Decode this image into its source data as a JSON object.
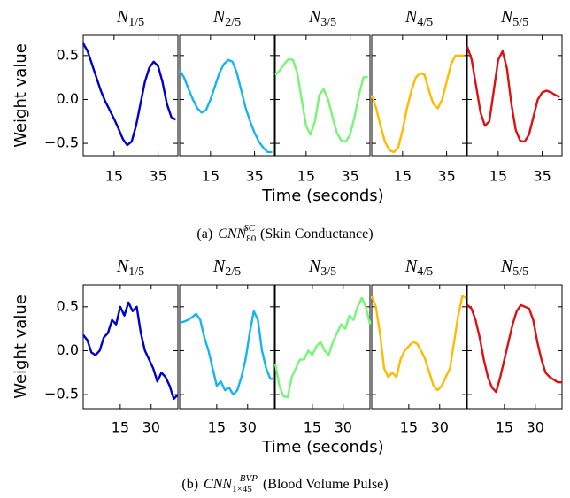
{
  "chart_data": [
    {
      "type": "line",
      "ylabel": "Weight value",
      "xlabel": "Time (seconds)",
      "caption_label": "(a)",
      "caption_math": "CNN",
      "caption_subscript": "80",
      "caption_superscript": "SC",
      "caption_text": "(Skin Conductance)",
      "xlim": [
        1,
        44
      ],
      "ylim": [
        -0.64,
        0.73
      ],
      "xticks": [
        15,
        35
      ],
      "yticks": [
        {
          "value": -0.5,
          "label": "−0.5"
        },
        {
          "value": 0,
          "label": "0.0"
        },
        0.5
      ],
      "x": [
        1,
        3,
        5,
        7,
        9,
        11,
        13,
        15,
        17,
        19,
        21,
        23,
        25,
        27,
        29,
        31,
        33,
        35,
        37,
        39,
        41,
        43
      ],
      "panels": [
        {
          "title": "N",
          "title_subscript": "1/5",
          "color": "#0000cc",
          "values": [
            0.64,
            0.55,
            0.4,
            0.25,
            0.1,
            -0.02,
            -0.12,
            -0.22,
            -0.33,
            -0.45,
            -0.52,
            -0.48,
            -0.3,
            -0.05,
            0.2,
            0.36,
            0.43,
            0.38,
            0.2,
            -0.05,
            -0.2,
            -0.23
          ]
        },
        {
          "title": "N",
          "title_subscript": "2/5",
          "color": "#19b3f0",
          "values": [
            0.33,
            0.25,
            0.12,
            0.0,
            -0.1,
            -0.15,
            -0.12,
            0.0,
            0.15,
            0.3,
            0.4,
            0.45,
            0.43,
            0.3,
            0.1,
            -0.1,
            -0.25,
            -0.38,
            -0.48,
            -0.55,
            -0.6,
            -0.6
          ]
        },
        {
          "title": "N",
          "title_subscript": "3/5",
          "color": "#77f577",
          "values": [
            0.28,
            0.33,
            0.4,
            0.46,
            0.45,
            0.3,
            0.0,
            -0.3,
            -0.4,
            -0.25,
            0.05,
            0.12,
            0.0,
            -0.2,
            -0.38,
            -0.47,
            -0.48,
            -0.4,
            -0.2,
            0.05,
            0.25,
            0.26
          ]
        },
        {
          "title": "N",
          "title_subscript": "4/5",
          "color": "#ffbb00",
          "values": [
            0.05,
            -0.1,
            -0.3,
            -0.48,
            -0.58,
            -0.6,
            -0.55,
            -0.35,
            -0.1,
            0.1,
            0.25,
            0.3,
            0.28,
            0.1,
            -0.05,
            -0.1,
            0.0,
            0.2,
            0.4,
            0.5,
            0.5,
            0.5
          ]
        },
        {
          "title": "N",
          "title_subscript": "5/5",
          "color": "#dd1111",
          "values": [
            0.6,
            0.45,
            0.15,
            -0.15,
            -0.3,
            -0.25,
            0.1,
            0.45,
            0.55,
            0.35,
            -0.05,
            -0.35,
            -0.47,
            -0.48,
            -0.4,
            -0.2,
            0.0,
            0.08,
            0.1,
            0.08,
            0.05,
            0.03
          ]
        }
      ]
    },
    {
      "type": "line",
      "ylabel": "Weight value",
      "xlabel": "Time (seconds)",
      "caption_label": "(b)",
      "caption_math": "CNN",
      "caption_subscript": "1×45",
      "caption_superscript": "BVP",
      "caption_text": "(Blood Volume Pulse)",
      "xlim": [
        -3,
        43
      ],
      "ylim": [
        -0.66,
        0.75
      ],
      "xticks": [
        15,
        30
      ],
      "yticks": [
        {
          "value": -0.5,
          "label": "−0.5"
        },
        {
          "value": 0,
          "label": "0.0"
        },
        0.5
      ],
      "x": [
        -3,
        -1,
        1,
        3,
        5,
        7,
        9,
        11,
        13,
        15,
        17,
        19,
        21,
        23,
        25,
        27,
        29,
        31,
        33,
        35,
        37,
        39,
        41,
        43
      ],
      "panels": [
        {
          "title": "N",
          "title_subscript": "1/5",
          "color": "#0000cc",
          "values": [
            0.18,
            0.12,
            -0.02,
            -0.05,
            0.0,
            0.15,
            0.2,
            0.35,
            0.3,
            0.5,
            0.4,
            0.55,
            0.45,
            0.5,
            0.2,
            0.0,
            -0.1,
            -0.2,
            -0.35,
            -0.25,
            -0.3,
            -0.4,
            -0.55,
            -0.5
          ]
        },
        {
          "title": "N",
          "title_subscript": "2/5",
          "color": "#19b3f0",
          "values": [
            0.32,
            0.33,
            0.35,
            0.38,
            0.42,
            0.35,
            0.15,
            0.0,
            -0.2,
            -0.4,
            -0.35,
            -0.45,
            -0.42,
            -0.5,
            -0.45,
            -0.3,
            -0.1,
            0.2,
            0.45,
            0.35,
            0.0,
            -0.2,
            -0.32,
            -0.32
          ]
        },
        {
          "title": "N",
          "title_subscript": "3/5",
          "color": "#77f577",
          "values": [
            -0.15,
            -0.4,
            -0.52,
            -0.53,
            -0.3,
            -0.2,
            -0.1,
            -0.1,
            0.0,
            -0.05,
            0.05,
            0.1,
            0.0,
            -0.05,
            0.1,
            0.2,
            0.3,
            0.25,
            0.4,
            0.35,
            0.5,
            0.6,
            0.5,
            0.3
          ]
        },
        {
          "title": "N",
          "title_subscript": "4/5",
          "color": "#ffbb00",
          "values": [
            0.62,
            0.5,
            0.2,
            -0.2,
            -0.3,
            -0.25,
            -0.3,
            -0.1,
            0.0,
            0.05,
            0.1,
            0.08,
            0.0,
            -0.1,
            -0.25,
            -0.4,
            -0.45,
            -0.4,
            -0.3,
            -0.2,
            0.1,
            0.4,
            0.62,
            0.6
          ]
        },
        {
          "title": "N",
          "title_subscript": "5/5",
          "color": "#dd1111",
          "values": [
            0.52,
            0.48,
            0.35,
            0.15,
            -0.1,
            -0.3,
            -0.42,
            -0.47,
            -0.3,
            -0.1,
            0.1,
            0.3,
            0.45,
            0.52,
            0.5,
            0.48,
            0.35,
            0.1,
            -0.1,
            -0.25,
            -0.3,
            -0.33,
            -0.36,
            -0.36
          ]
        }
      ]
    }
  ]
}
